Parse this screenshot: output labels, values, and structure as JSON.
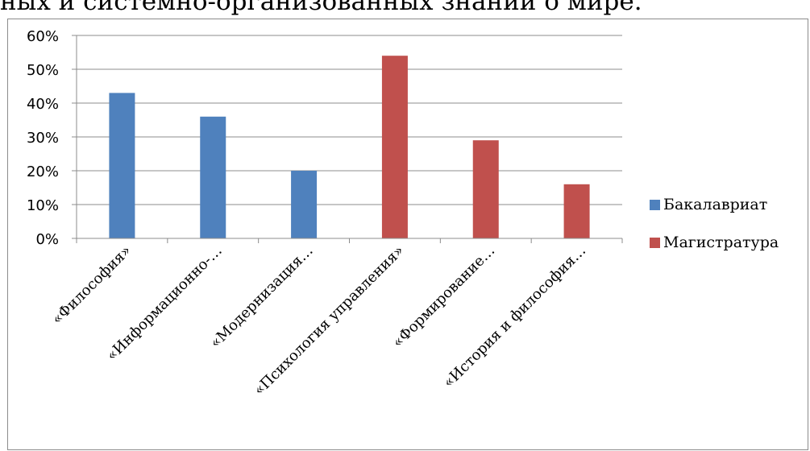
{
  "caption": "ных и системно-организованных знаний о мире.",
  "chart_data": {
    "type": "bar",
    "categories": [
      "«Философия»",
      "«Информационно-…",
      "«Модернизация…",
      "«Психология управления»",
      "«Формирование…",
      "«История и философия…"
    ],
    "series": [
      {
        "name": "Бакалавриат",
        "color": "#4f81bd",
        "values": [
          43,
          36,
          20,
          null,
          null,
          null
        ]
      },
      {
        "name": "Магистратура",
        "color": "#c0504d",
        "values": [
          null,
          null,
          null,
          54,
          29,
          16
        ]
      }
    ],
    "y_ticks": [
      "0%",
      "10%",
      "20%",
      "30%",
      "40%",
      "50%",
      "60%"
    ],
    "ylim": [
      0,
      60
    ],
    "y_unit": "%",
    "grid": true,
    "legend_position": "right"
  }
}
